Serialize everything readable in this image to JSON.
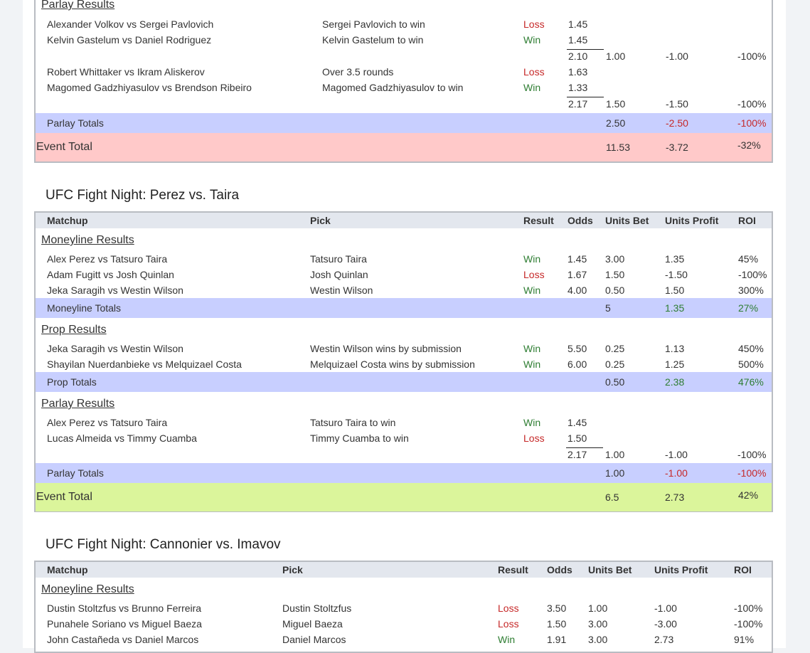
{
  "event1": {
    "parlay_title": "Parlay Results",
    "parlay_rows": [
      {
        "matchup": "Alexander Volkov vs Sergei Pavlovich",
        "pick": "Sergei Pavlovich to win",
        "result": "Loss",
        "odds": "1.45"
      },
      {
        "matchup": "Kelvin Gastelum vs Daniel Rodriguez",
        "pick": "Kelvin Gastelum to win",
        "result": "Win",
        "odds": "1.45"
      },
      {
        "matchup": "Robert Whittaker vs Ikram Aliskerov",
        "pick": "Over 3.5 rounds",
        "result": "Loss",
        "odds": "1.63"
      },
      {
        "matchup": "Magomed Gadzhiyasulov vs Brendson Ribeiro",
        "pick": "Magomed Gadzhiyasulov to win",
        "result": "Win",
        "odds": "1.33"
      }
    ],
    "parlay_combos": [
      {
        "odds": "2.10",
        "bet": "1.00",
        "profit": "-1.00",
        "roi": "-100%"
      },
      {
        "odds": "2.17",
        "bet": "1.50",
        "profit": "-1.50",
        "roi": "-100%"
      }
    ],
    "parlay_totals": {
      "label": "Parlay Totals",
      "bet": "2.50",
      "profit": "-2.50",
      "roi": "-100%"
    },
    "event_total": {
      "label": "Event Total",
      "bet": "11.53",
      "profit": "-3.72",
      "roi": "-32%"
    }
  },
  "event2": {
    "title": "UFC Fight Night: Perez vs. Taira",
    "headers": {
      "matchup": "Matchup",
      "pick": "Pick",
      "result": "Result",
      "odds": "Odds",
      "bet": "Units Bet",
      "profit": "Units Profit",
      "roi": "ROI"
    },
    "moneyline_title": "Moneyline Results",
    "moneyline_rows": [
      {
        "matchup": "Alex Perez vs Tatsuro Taira",
        "pick": "Tatsuro Taira",
        "result": "Win",
        "odds": "1.45",
        "bet": "3.00",
        "profit": "1.35",
        "roi": "45%"
      },
      {
        "matchup": "Adam Fugitt vs Josh Quinlan",
        "pick": "Josh Quinlan",
        "result": "Loss",
        "odds": "1.67",
        "bet": "1.50",
        "profit": "-1.50",
        "roi": "-100%"
      },
      {
        "matchup": "Jeka Saragih vs Westin Wilson",
        "pick": "Westin Wilson",
        "result": "Win",
        "odds": "4.00",
        "bet": "0.50",
        "profit": "1.50",
        "roi": "300%"
      }
    ],
    "moneyline_totals": {
      "label": "Moneyline Totals",
      "bet": "5",
      "profit": "1.35",
      "roi": "27%"
    },
    "prop_title": "Prop Results",
    "prop_rows": [
      {
        "matchup": "Jeka Saragih vs Westin Wilson",
        "pick": "Westin Wilson wins by submission",
        "result": "Win",
        "odds": "5.50",
        "bet": "0.25",
        "profit": "1.13",
        "roi": "450%"
      },
      {
        "matchup": "Shayilan Nuerdanbieke vs Melquizael Costa",
        "pick": "Melquizael Costa wins by submission",
        "result": "Win",
        "odds": "6.00",
        "bet": "0.25",
        "profit": "1.25",
        "roi": "500%"
      }
    ],
    "prop_totals": {
      "label": "Prop Totals",
      "bet": "0.50",
      "profit": "2.38",
      "roi": "476%"
    },
    "parlay_title": "Parlay Results",
    "parlay_rows": [
      {
        "matchup": "Alex Perez vs Tatsuro Taira",
        "pick": "Tatsuro Taira to win",
        "result": "Win",
        "odds": "1.45"
      },
      {
        "matchup": "Lucas Almeida vs Timmy Cuamba",
        "pick": "Timmy Cuamba to win",
        "result": "Loss",
        "odds": "1.50"
      }
    ],
    "parlay_combo": {
      "odds": "2.17",
      "bet": "1.00",
      "profit": "-1.00",
      "roi": "-100%"
    },
    "parlay_totals": {
      "label": "Parlay Totals",
      "bet": "1.00",
      "profit": "-1.00",
      "roi": "-100%"
    },
    "event_total": {
      "label": "Event Total",
      "bet": "6.5",
      "profit": "2.73",
      "roi": "42%"
    }
  },
  "event3": {
    "title": "UFC Fight Night: Cannonier vs. Imavov",
    "headers": {
      "matchup": "Matchup",
      "pick": "Pick",
      "result": "Result",
      "odds": "Odds",
      "bet": "Units Bet",
      "profit": "Units Profit",
      "roi": "ROI"
    },
    "moneyline_title": "Moneyline Results",
    "moneyline_rows": [
      {
        "matchup": "Dustin Stoltzfus vs Brunno Ferreira",
        "pick": "Dustin Stoltzfus",
        "result": "Loss",
        "odds": "3.50",
        "bet": "1.00",
        "profit": "-1.00",
        "roi": "-100%"
      },
      {
        "matchup": "Punahele Soriano vs Miguel Baeza",
        "pick": "Miguel Baeza",
        "result": "Loss",
        "odds": "1.50",
        "bet": "3.00",
        "profit": "-3.00",
        "roi": "-100%"
      },
      {
        "matchup": "John Castañeda vs Daniel Marcos",
        "pick": "Daniel Marcos",
        "result": "Win",
        "odds": "1.91",
        "bet": "3.00",
        "profit": "2.73",
        "roi": "91%"
      }
    ]
  },
  "colors": {
    "win": "#2e7d32",
    "loss": "#c62828",
    "totals_bg": "#c8cfff",
    "event_loss_bg": "#ffc9c9",
    "event_win_bg": "#dbf59b",
    "header_bg": "#e3e7ee"
  }
}
